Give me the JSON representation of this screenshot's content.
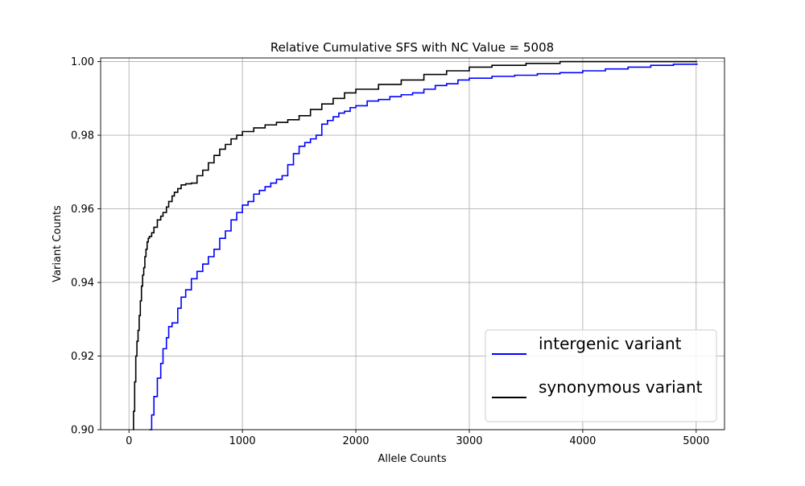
{
  "chart_data": {
    "type": "line",
    "title": "Relative Cumulative SFS with NC Value = 5008",
    "xlabel": "Allele Counts",
    "ylabel": "Variant Counts",
    "xlim": [
      -250,
      5250
    ],
    "ylim": [
      0.9,
      1.001
    ],
    "x_ticks": [
      0,
      1000,
      2000,
      3000,
      4000,
      5000
    ],
    "y_ticks": [
      0.9,
      0.92,
      0.94,
      0.96,
      0.98,
      1.0
    ],
    "x_tick_labels": [
      "0",
      "1000",
      "2000",
      "3000",
      "4000",
      "5000"
    ],
    "y_tick_labels": [
      "0.90",
      "0.92",
      "0.94",
      "0.96",
      "0.98",
      "1.00"
    ],
    "grid": true,
    "legend_position": "lower right",
    "series": [
      {
        "name": "intergenic variant",
        "color": "#0000ff",
        "step": true,
        "x": [
          180,
          200,
          220,
          250,
          280,
          300,
          330,
          350,
          380,
          430,
          460,
          500,
          550,
          600,
          650,
          700,
          750,
          800,
          850,
          900,
          950,
          1000,
          1050,
          1100,
          1150,
          1200,
          1250,
          1300,
          1350,
          1400,
          1450,
          1500,
          1550,
          1600,
          1650,
          1700,
          1750,
          1800,
          1850,
          1900,
          1950,
          2000,
          2100,
          2200,
          2300,
          2400,
          2500,
          2600,
          2700,
          2800,
          2900,
          3000,
          3200,
          3400,
          3600,
          3800,
          4000,
          4200,
          4400,
          4600,
          4800,
          5008
        ],
        "y": [
          0.9,
          0.904,
          0.909,
          0.914,
          0.918,
          0.922,
          0.925,
          0.928,
          0.929,
          0.933,
          0.936,
          0.938,
          0.941,
          0.943,
          0.945,
          0.947,
          0.949,
          0.952,
          0.954,
          0.957,
          0.959,
          0.961,
          0.962,
          0.964,
          0.965,
          0.966,
          0.967,
          0.968,
          0.969,
          0.972,
          0.975,
          0.977,
          0.978,
          0.979,
          0.98,
          0.983,
          0.984,
          0.985,
          0.986,
          0.9865,
          0.9875,
          0.988,
          0.9893,
          0.9897,
          0.9905,
          0.991,
          0.9915,
          0.9925,
          0.9935,
          0.994,
          0.995,
          0.9955,
          0.996,
          0.9963,
          0.9967,
          0.997,
          0.9975,
          0.998,
          0.9985,
          0.999,
          0.9993,
          0.9995
        ]
      },
      {
        "name": "synonymous variant",
        "color": "#000000",
        "step": true,
        "x": [
          35,
          40,
          50,
          60,
          70,
          80,
          90,
          100,
          110,
          120,
          130,
          140,
          150,
          160,
          170,
          180,
          200,
          220,
          250,
          280,
          300,
          330,
          350,
          380,
          400,
          430,
          460,
          500,
          550,
          600,
          650,
          700,
          750,
          800,
          850,
          900,
          950,
          1000,
          1100,
          1200,
          1300,
          1400,
          1500,
          1600,
          1700,
          1800,
          1900,
          2000,
          2200,
          2400,
          2600,
          2800,
          3000,
          3200,
          3500,
          3800,
          4000,
          4500,
          5008
        ],
        "y": [
          0.9,
          0.905,
          0.913,
          0.92,
          0.924,
          0.927,
          0.931,
          0.935,
          0.939,
          0.942,
          0.944,
          0.947,
          0.949,
          0.951,
          0.952,
          0.9525,
          0.9535,
          0.955,
          0.957,
          0.958,
          0.959,
          0.9605,
          0.962,
          0.9635,
          0.9645,
          0.9655,
          0.9665,
          0.9668,
          0.967,
          0.969,
          0.9705,
          0.9725,
          0.9745,
          0.9762,
          0.9775,
          0.979,
          0.98,
          0.981,
          0.982,
          0.9828,
          0.9835,
          0.9842,
          0.9853,
          0.987,
          0.9885,
          0.99,
          0.9915,
          0.9925,
          0.9938,
          0.995,
          0.9965,
          0.9975,
          0.9985,
          0.999,
          0.9995,
          1.0,
          1.0,
          1.0,
          1.0
        ]
      }
    ]
  }
}
